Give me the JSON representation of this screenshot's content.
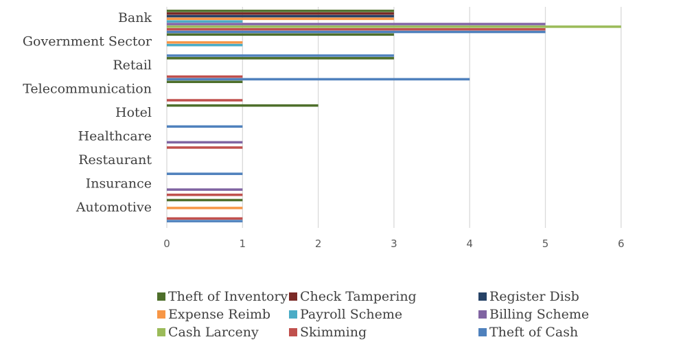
{
  "chart_data": {
    "type": "bar",
    "orientation": "horizontal",
    "categories": [
      "Bank",
      "Government Sector",
      "Retail",
      "Telecommunication",
      "Hotel",
      "Healthcare",
      "Restaurant",
      "Insurance",
      "Automotive"
    ],
    "series": [
      {
        "name": "Theft of Inventory",
        "color": "#4e6f2b",
        "values": [
          3,
          3,
          3,
          1,
          2,
          0,
          0,
          0,
          1
        ]
      },
      {
        "name": "Check Tampering",
        "color": "#7b2a27",
        "values": [
          3,
          0,
          0,
          0,
          0,
          0,
          0,
          0,
          0
        ]
      },
      {
        "name": "Register Disb",
        "color": "#264266",
        "values": [
          3,
          0,
          0,
          0,
          0,
          0,
          0,
          0,
          0
        ]
      },
      {
        "name": "Expense Reimb",
        "color": "#f79646",
        "values": [
          3,
          1,
          0,
          0,
          0,
          0,
          0,
          0,
          1
        ]
      },
      {
        "name": "Payroll Scheme",
        "color": "#4bacc6",
        "values": [
          1,
          1,
          0,
          0,
          0,
          0,
          0,
          0,
          0
        ]
      },
      {
        "name": "Billing Scheme",
        "color": "#8064a2",
        "values": [
          5,
          0,
          0,
          0,
          0,
          1,
          0,
          1,
          0
        ]
      },
      {
        "name": "Cash Larceny",
        "color": "#9bbb59",
        "values": [
          6,
          0,
          0,
          0,
          0,
          0,
          0,
          0,
          0
        ]
      },
      {
        "name": "Skimming",
        "color": "#c0504d",
        "values": [
          5,
          0,
          1,
          1,
          0,
          1,
          0,
          1,
          1
        ]
      },
      {
        "name": "Theft of Cash",
        "color": "#4f81bd",
        "values": [
          5,
          3,
          4,
          0,
          1,
          0,
          1,
          0,
          1
        ]
      }
    ],
    "xlim": [
      0,
      6
    ],
    "x_ticks": [
      0,
      1,
      2,
      3,
      4,
      5,
      6
    ],
    "grid": "vertical",
    "legend_position": "bottom"
  }
}
